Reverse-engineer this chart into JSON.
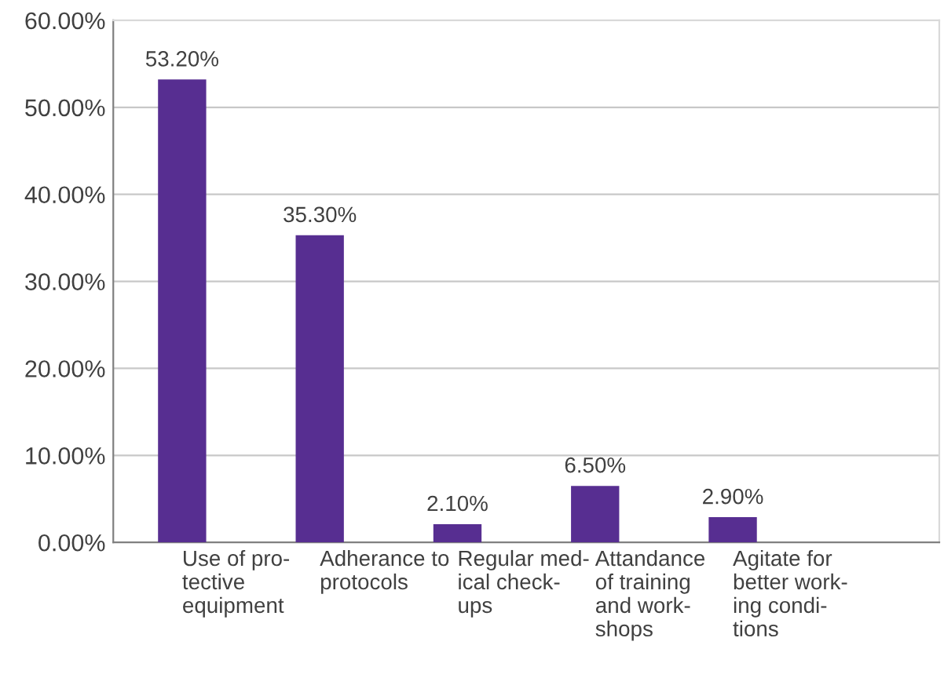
{
  "chart_data": {
    "type": "bar",
    "categories": [
      "Use of pro-\ntective\nequipment",
      "Adherance to\nprotocols",
      "Regular med-\nical check-\nups",
      "Attandance\nof training\nand work-\nshops",
      "Agitate for\nbetter work-\ning condi-\ntions",
      null
    ],
    "values": [
      53.2,
      35.3,
      2.1,
      6.5,
      2.9,
      null
    ],
    "value_labels": [
      "53.20%",
      "35.30%",
      "2.10%",
      "6.50%",
      "2.90%",
      null
    ],
    "color": "#572e91",
    "ylim": [
      0,
      60
    ],
    "yticks": [
      {
        "value": 0,
        "label": "0.00%"
      },
      {
        "value": 10,
        "label": "10.00%"
      },
      {
        "value": 20,
        "label": "20.00%"
      },
      {
        "value": 30,
        "label": "30.00%"
      },
      {
        "value": 40,
        "label": "40.00%"
      },
      {
        "value": 50,
        "label": "50.00%"
      },
      {
        "value": 60,
        "label": "60.00%"
      }
    ],
    "grid": "y"
  }
}
